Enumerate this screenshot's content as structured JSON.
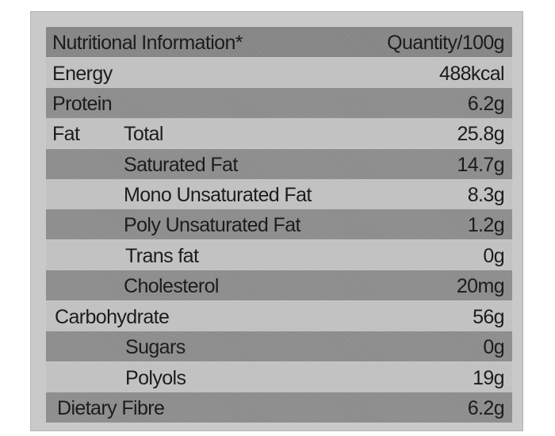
{
  "header": {
    "label": "Nutritional Information*",
    "value": "Quantity/100g"
  },
  "rows": [
    {
      "label": "Energy",
      "sublabel": "",
      "value": "488kcal"
    },
    {
      "label": "Protein",
      "sublabel": "",
      "value": "6.2g"
    },
    {
      "label": "Fat",
      "sublabel": "Total",
      "value": "25.8g"
    },
    {
      "label": "",
      "sublabel": "Saturated Fat",
      "value": "14.7g"
    },
    {
      "label": "",
      "sublabel": "Mono Unsaturated Fat",
      "value": "8.3g"
    },
    {
      "label": "",
      "sublabel": "Poly Unsaturated Fat",
      "value": "1.2g"
    },
    {
      "label": "",
      "sublabel": "Trans fat",
      "value": "0g"
    },
    {
      "label": "",
      "sublabel": "Cholesterol",
      "value": "20mg"
    },
    {
      "label": "Carbohydrate",
      "sublabel": "",
      "value": "56g"
    },
    {
      "label": "",
      "sublabel": "Sugars",
      "value": "0g"
    },
    {
      "label": "",
      "sublabel": "Polyols",
      "value": "19g"
    },
    {
      "label": "Dietary Fibre",
      "sublabel": "",
      "value": "6.2g"
    }
  ]
}
